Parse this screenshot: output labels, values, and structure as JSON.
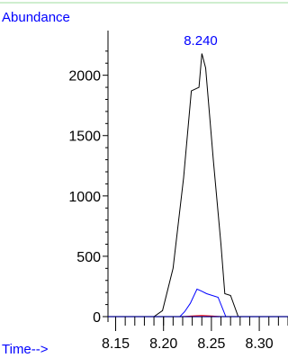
{
  "chart_data": {
    "type": "line",
    "ylabel": "Abundance",
    "xlabel": "Time-->",
    "peak_annotation": "8.240",
    "xlim": [
      8.142,
      8.33
    ],
    "ylim": [
      0,
      2300
    ],
    "x_ticks": [
      "8.15",
      "8.20",
      "8.25",
      "8.30"
    ],
    "x_tick_values": [
      8.15,
      8.2,
      8.25,
      8.3
    ],
    "y_ticks": [
      "0",
      "500",
      "1000",
      "1500",
      "2000"
    ],
    "y_tick_values": [
      0,
      500,
      1000,
      1500,
      2000
    ],
    "colors": {
      "label": "#0000ff",
      "series_black": "#000000",
      "series_blue": "#0000ff",
      "series_red": "#ff0000",
      "baseline": "#00008b",
      "top_rule": "#9fdc9f"
    },
    "series": [
      {
        "color": "#000000",
        "x": [
          8.142,
          8.19,
          8.199,
          8.21,
          8.221,
          8.229,
          8.237,
          8.24,
          8.244,
          8.252,
          8.26,
          8.264,
          8.27,
          8.278,
          8.33
        ],
        "y": [
          0,
          0,
          50,
          400,
          1150,
          1870,
          1900,
          2180,
          2060,
          1300,
          600,
          190,
          175,
          0,
          0
        ]
      },
      {
        "color": "#0000ff",
        "x": [
          8.142,
          8.217,
          8.222,
          8.228,
          8.235,
          8.24,
          8.245,
          8.257,
          8.265,
          8.33
        ],
        "y": [
          0,
          0,
          40,
          110,
          228,
          210,
          190,
          160,
          0,
          0
        ]
      },
      {
        "color": "#ff0000",
        "x": [
          8.142,
          8.22,
          8.23,
          8.24,
          8.25,
          8.26,
          8.33
        ],
        "y": [
          0,
          0,
          6,
          10,
          6,
          0,
          0
        ]
      }
    ]
  }
}
